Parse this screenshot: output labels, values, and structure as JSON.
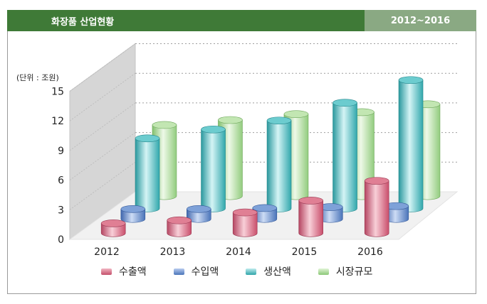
{
  "header": {
    "title": "화장품 산업현황",
    "years": "2012~2016"
  },
  "colors": {
    "header_dark": "#3f7a37",
    "header_light": "#8aa983",
    "export": "#d4627c",
    "import": "#5c86c8",
    "production": "#3cb3b8",
    "market": "#a5d896"
  },
  "chart_data": {
    "type": "bar",
    "unit_label": "(단위 : 조원)",
    "categories": [
      "2012",
      "2013",
      "2014",
      "2015",
      "2016"
    ],
    "series": [
      {
        "name": "수출액",
        "values": [
          1.0,
          1.3,
          2.1,
          3.3,
          5.3
        ],
        "color": "#d4627c"
      },
      {
        "name": "수입액",
        "values": [
          1.0,
          1.0,
          1.1,
          1.2,
          1.3
        ],
        "color": "#5c86c8"
      },
      {
        "name": "생산액",
        "values": [
          7.1,
          8.0,
          8.9,
          10.7,
          13.0
        ],
        "color": "#3cb3b8"
      },
      {
        "name": "시장규모",
        "values": [
          7.2,
          7.7,
          8.3,
          8.5,
          9.3
        ],
        "color": "#a5d896"
      }
    ],
    "yticks": [
      0,
      3,
      6,
      9,
      12,
      15
    ],
    "ylim": [
      0,
      15
    ],
    "grid": true,
    "legend_position": "bottom"
  }
}
